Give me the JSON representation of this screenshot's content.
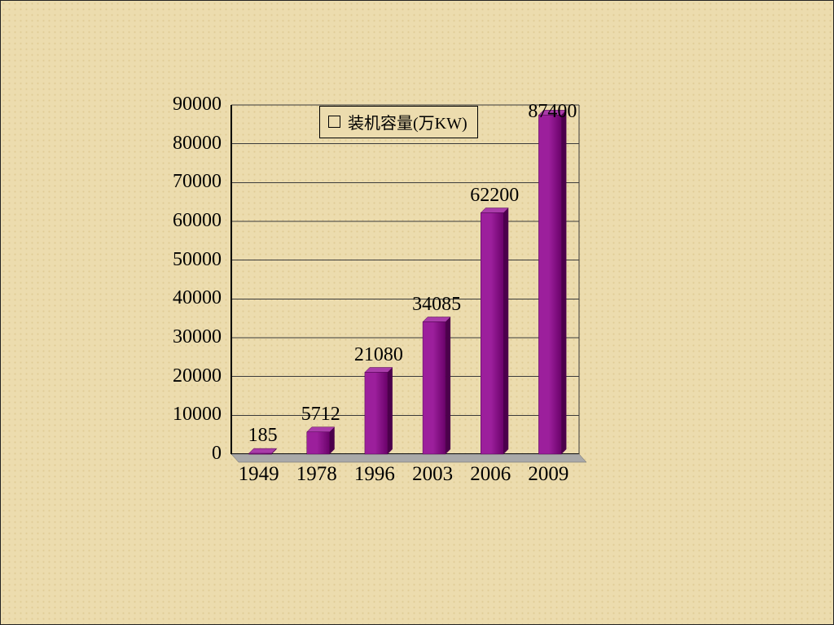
{
  "chart_data": {
    "type": "bar",
    "title": "",
    "legend": {
      "label": "装机容量(万KW)",
      "position": "top-center"
    },
    "categories": [
      "1949",
      "1978",
      "1996",
      "2003",
      "2006",
      "2009"
    ],
    "series": [
      {
        "name": "装机容量(万KW)",
        "values": [
          185,
          5712,
          21080,
          34085,
          62200,
          87400
        ]
      }
    ],
    "xlabel": "",
    "ylabel": "",
    "ylim": [
      0,
      90000
    ],
    "ytick_step": 10000,
    "grid": true,
    "data_labels": true,
    "style": "3d-column"
  },
  "colors": {
    "background": "#ecdcae",
    "bar_front_light": "#9c1f9c",
    "bar_front_dark": "#6a026a",
    "bar_side": "#4c004c",
    "bar_top": "#aa3caa",
    "axis_line": "#000000",
    "gridline": "#3a3a3a",
    "floor": "#a9a9a9",
    "text": "#000000"
  }
}
